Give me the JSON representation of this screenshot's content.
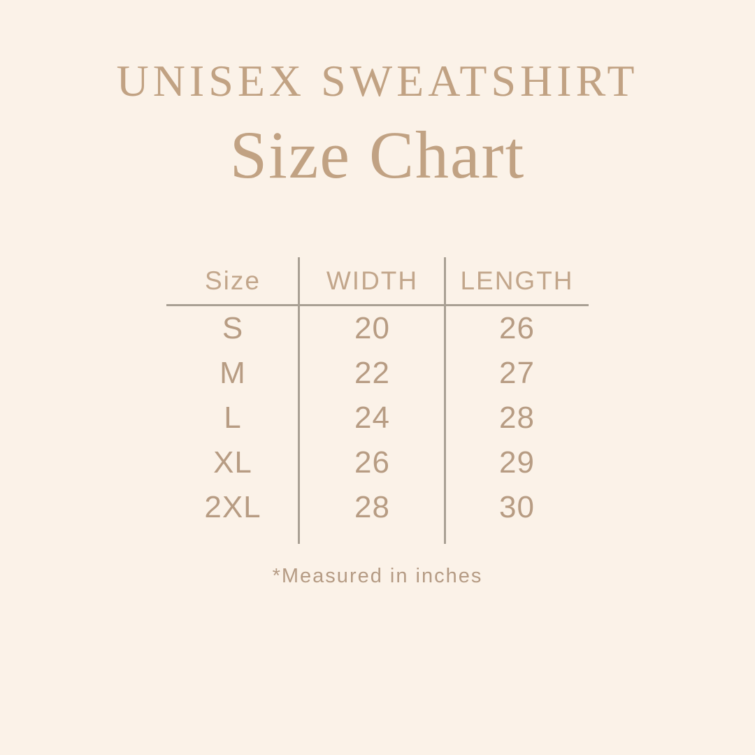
{
  "header": {
    "title": "UNISEX SWEATSHIRT",
    "subtitle": "Size Chart"
  },
  "footnote": "*Measured in inches",
  "colors": {
    "bg": "#fbf2e8",
    "title": "#c1a283",
    "table-header": "#c2a68b",
    "table-text": "#b79c83",
    "line": "#a9a094",
    "footnote": "#b59b84"
  },
  "chart_data": {
    "type": "table",
    "title": "UNISEX SWEATSHIRT",
    "subtitle": "Size Chart",
    "units": "inches",
    "columns": [
      "Size",
      "WIDTH",
      "LENGTH"
    ],
    "rows": [
      [
        "S",
        "20",
        "26"
      ],
      [
        "M",
        "22",
        "27"
      ],
      [
        "L",
        "24",
        "28"
      ],
      [
        "XL",
        "26",
        "29"
      ],
      [
        "2XL",
        "28",
        "30"
      ]
    ],
    "note": "*Measured in inches",
    "layout": {
      "grid": "off",
      "column_dividers": true,
      "header_underline": true
    }
  }
}
